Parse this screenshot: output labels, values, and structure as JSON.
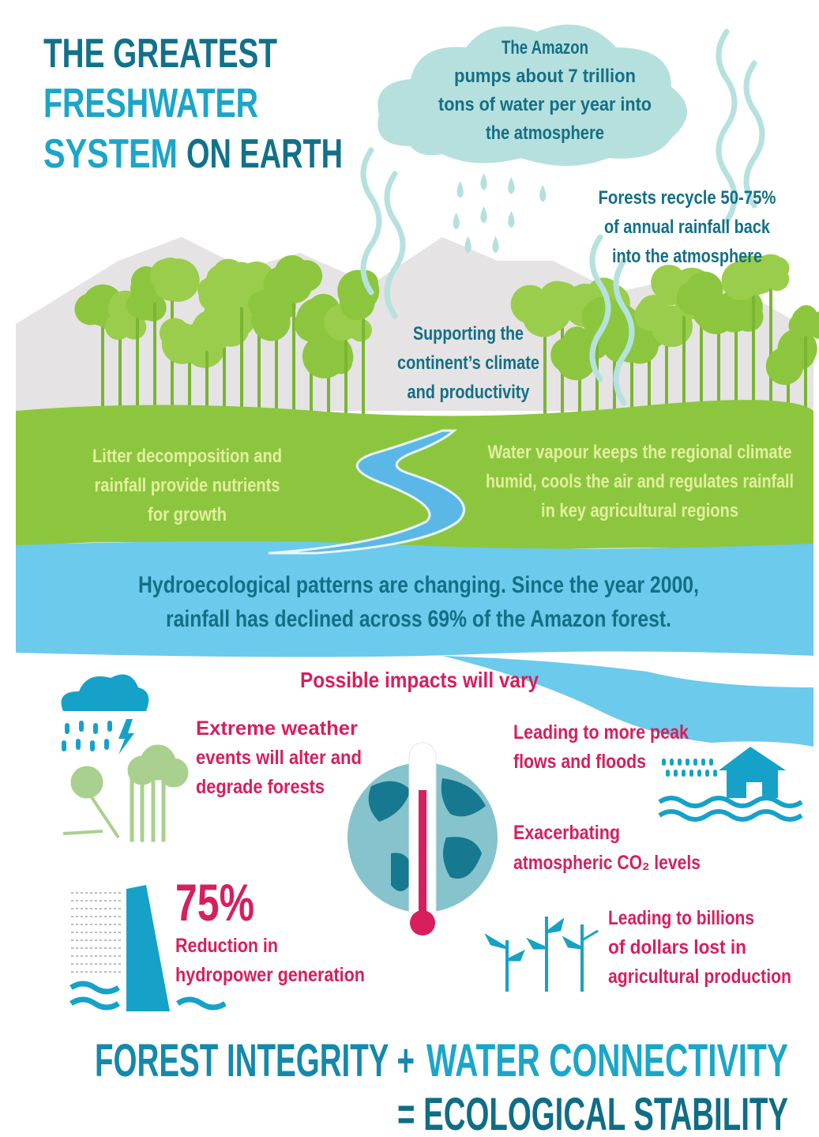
{
  "title": {
    "line1": "THE GREATEST",
    "line2": "FRESHWATER",
    "line3_highlight": "SYSTEM",
    "line3_rest": "ON EARTH"
  },
  "cloud_callout": {
    "lines": [
      "The Amazon",
      "pumps about 7 trillion",
      "tons of water per year into",
      "the atmosphere"
    ]
  },
  "recycle_callout": {
    "lines": [
      "Forests recycle 50-75%",
      "of annual rainfall back",
      "into the atmosphere"
    ]
  },
  "climate_callout": {
    "lines": [
      "Supporting the",
      "continent’s climate",
      "and productivity"
    ]
  },
  "nutrients_callout": {
    "lines": [
      "Litter decomposition and",
      "rainfall provide nutrients",
      "for growth"
    ]
  },
  "vapour_callout": {
    "lines": [
      "Water vapour keeps the regional climate",
      "humid, cools the air and regulates rainfall",
      "in key agricultural regions"
    ]
  },
  "water_banner": {
    "lines": [
      "Hydroecological patterns are changing. Since the year 2000,",
      "rainfall has declined across 69% of the Amazon forest."
    ]
  },
  "impacts": {
    "heading": "Possible impacts will vary",
    "extreme_weather": {
      "lines": [
        "Extreme weather",
        "events will alter and",
        "degrade forests"
      ]
    },
    "floods": {
      "lines": [
        "Leading to more peak",
        "flows and floods"
      ]
    },
    "co2": {
      "lines": [
        "Exacerbating",
        "atmospheric CO₂ levels"
      ]
    },
    "agriculture": {
      "lines": [
        "Leading to billions",
        "of dollars lost in",
        "agricultural production"
      ]
    },
    "hydropower": {
      "stat": "75%",
      "lines": [
        "Reduction in",
        "hydropower generation"
      ]
    }
  },
  "footer": {
    "line1_part1": "FOREST INTEGRITY +",
    "line1_part2": "WATER CONNECTIVITY",
    "line2": "= ECOLOGICAL STABILITY"
  }
}
